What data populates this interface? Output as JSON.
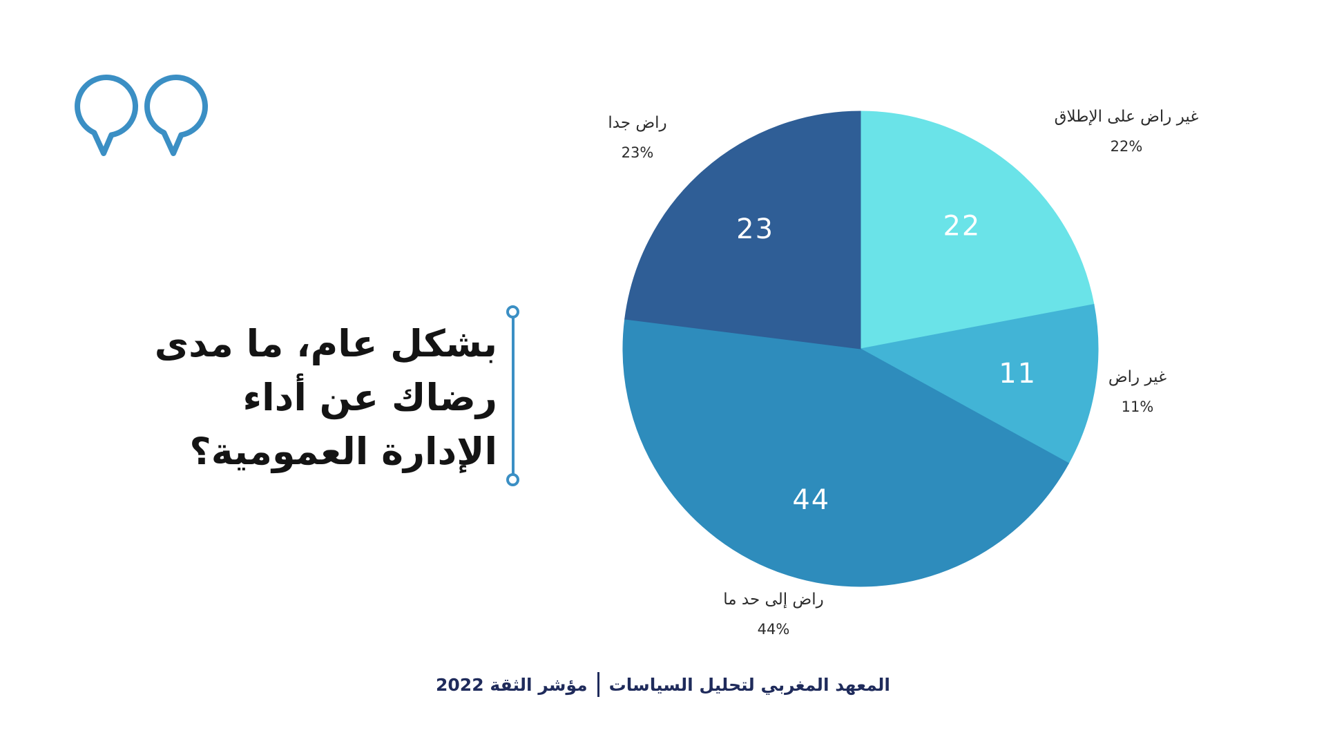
{
  "slide": {
    "quote_icon": "quote-icon",
    "question_lines": [
      "بشكل عام، ما مدى",
      "رضاك عن أداء",
      "الإدارة العمومية؟"
    ],
    "footer": {
      "source": "المعهد المغربي لتحليل السياسات",
      "index": "مؤشر الثقة 2022"
    }
  },
  "colors": {
    "accent": "#3B8FC4",
    "question_text": "#141414",
    "footer_text": "#1F2B5B",
    "background": "#FFFFFF"
  },
  "chart_data": {
    "type": "pie",
    "categories": [
      "غير راض على الإطلاق",
      "غير راض",
      "راض إلى حد ما",
      "راض جدا"
    ],
    "values": [
      22,
      11,
      44,
      23
    ],
    "percent_labels": [
      "22%",
      "11%",
      "44%",
      "23%"
    ],
    "colors": [
      "#6AE3E8",
      "#42B4D6",
      "#2E8CBC",
      "#2F5E96"
    ]
  }
}
